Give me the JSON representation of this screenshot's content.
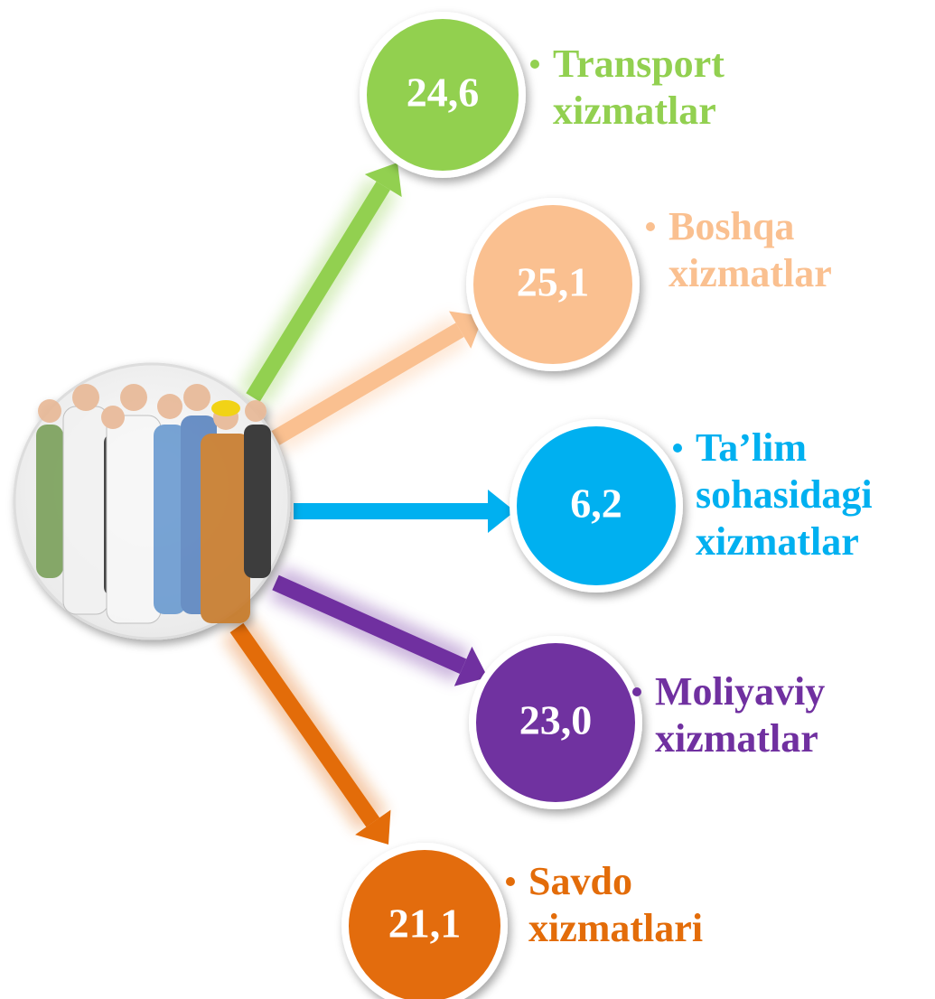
{
  "nodes": [
    {
      "value": "24,6",
      "lines": [
        "Transport",
        "xizmatlar"
      ],
      "color": "#92d050"
    },
    {
      "value": "25,1",
      "lines": [
        "Boshqa",
        "xizmatlar"
      ],
      "color": "#fac090"
    },
    {
      "value": "6,2",
      "lines": [
        "Ta’lim",
        "sohasidagi",
        "xizmatlar"
      ],
      "color": "#00b0f0"
    },
    {
      "value": "23,0",
      "lines": [
        "Moliyaviy",
        "xizmatlar"
      ],
      "color": "#7030a0"
    },
    {
      "value": "21,1",
      "lines": [
        "Savdo",
        "xizmatlari"
      ],
      "color": "#e36c09"
    }
  ]
}
